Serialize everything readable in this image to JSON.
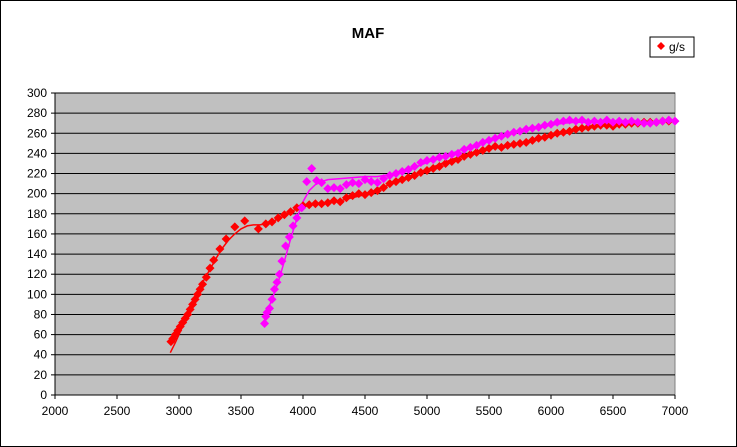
{
  "chart_data": {
    "type": "scatter",
    "title": "MAF",
    "xlabel": "",
    "ylabel": "",
    "xlim": [
      2000,
      7000
    ],
    "ylim": [
      0,
      300
    ],
    "x_ticks": [
      2000,
      2500,
      3000,
      3500,
      4000,
      4500,
      5000,
      5500,
      6000,
      6500,
      7000
    ],
    "y_ticks": [
      0,
      20,
      40,
      60,
      80,
      100,
      120,
      140,
      160,
      180,
      200,
      220,
      240,
      260,
      280,
      300
    ],
    "grid": "horizontal",
    "legend": "top-right",
    "plot_background": "#c0c0c0",
    "series": [
      {
        "name": "g/s",
        "color": "#ff0000",
        "marker": "diamond",
        "points": [
          [
            2935,
            53
          ],
          [
            2950,
            56
          ],
          [
            2970,
            60
          ],
          [
            2990,
            64
          ],
          [
            3010,
            68
          ],
          [
            3030,
            72
          ],
          [
            3050,
            76
          ],
          [
            3070,
            80
          ],
          [
            3090,
            85
          ],
          [
            3110,
            90
          ],
          [
            3130,
            95
          ],
          [
            3150,
            100
          ],
          [
            3170,
            105
          ],
          [
            3190,
            110
          ],
          [
            3220,
            117
          ],
          [
            3250,
            126
          ],
          [
            3280,
            134
          ],
          [
            3330,
            145
          ],
          [
            3380,
            155
          ],
          [
            3450,
            167
          ],
          [
            3530,
            173
          ],
          [
            3640,
            165
          ],
          [
            3700,
            170
          ],
          [
            3750,
            172
          ],
          [
            3800,
            176
          ],
          [
            3850,
            179
          ],
          [
            3900,
            182
          ],
          [
            3950,
            186
          ],
          [
            4000,
            188
          ],
          [
            4050,
            189
          ],
          [
            4100,
            190
          ],
          [
            4150,
            190
          ],
          [
            4200,
            191
          ],
          [
            4250,
            193
          ],
          [
            4300,
            192
          ],
          [
            4350,
            196
          ],
          [
            4400,
            198
          ],
          [
            4450,
            200
          ],
          [
            4500,
            199
          ],
          [
            4550,
            201
          ],
          [
            4600,
            203
          ],
          [
            4650,
            206
          ],
          [
            4700,
            210
          ],
          [
            4750,
            212
          ],
          [
            4800,
            214
          ],
          [
            4850,
            216
          ],
          [
            4900,
            218
          ],
          [
            4950,
            221
          ],
          [
            5000,
            223
          ],
          [
            5050,
            225
          ],
          [
            5100,
            227
          ],
          [
            5150,
            230
          ],
          [
            5200,
            232
          ],
          [
            5250,
            234
          ],
          [
            5300,
            237
          ],
          [
            5350,
            239
          ],
          [
            5400,
            241
          ],
          [
            5450,
            243
          ],
          [
            5500,
            245
          ],
          [
            5550,
            247
          ],
          [
            5600,
            246
          ],
          [
            5650,
            248
          ],
          [
            5700,
            249
          ],
          [
            5750,
            250
          ],
          [
            5800,
            251
          ],
          [
            5850,
            253
          ],
          [
            5900,
            255
          ],
          [
            5950,
            256
          ],
          [
            6000,
            258
          ],
          [
            6050,
            260
          ],
          [
            6100,
            261
          ],
          [
            6150,
            262
          ],
          [
            6200,
            264
          ],
          [
            6250,
            265
          ],
          [
            6300,
            266
          ],
          [
            6350,
            267
          ],
          [
            6400,
            268
          ],
          [
            6450,
            268
          ],
          [
            6500,
            267
          ],
          [
            6550,
            269
          ],
          [
            6600,
            269
          ],
          [
            6650,
            270
          ],
          [
            6700,
            270
          ],
          [
            6750,
            271
          ],
          [
            6800,
            271
          ],
          [
            6850,
            271
          ],
          [
            6900,
            272
          ],
          [
            6950,
            272
          ]
        ],
        "trendline": [
          [
            2930,
            42
          ],
          [
            2970,
            52
          ],
          [
            3000,
            60
          ],
          [
            3050,
            74
          ],
          [
            3100,
            88
          ],
          [
            3150,
            101
          ],
          [
            3200,
            114
          ],
          [
            3250,
            125
          ],
          [
            3300,
            136
          ],
          [
            3350,
            146
          ],
          [
            3400,
            154
          ],
          [
            3450,
            160
          ],
          [
            3500,
            165
          ],
          [
            3550,
            168
          ],
          [
            3600,
            169
          ],
          [
            3650,
            169
          ],
          [
            3700,
            170
          ],
          [
            3750,
            172
          ],
          [
            3800,
            175
          ],
          [
            3850,
            178
          ],
          [
            3900,
            182
          ],
          [
            3950,
            185
          ],
          [
            4000,
            188
          ],
          [
            4100,
            190
          ],
          [
            4200,
            191
          ],
          [
            4300,
            193
          ],
          [
            4400,
            196
          ],
          [
            4500,
            199
          ],
          [
            4600,
            204
          ],
          [
            4700,
            209
          ],
          [
            4800,
            214
          ],
          [
            4900,
            219
          ],
          [
            5000,
            224
          ],
          [
            5100,
            229
          ],
          [
            5200,
            234
          ],
          [
            5300,
            238
          ],
          [
            5400,
            242
          ],
          [
            5500,
            245
          ],
          [
            5600,
            247
          ],
          [
            5700,
            249
          ],
          [
            5800,
            251
          ],
          [
            5900,
            254
          ],
          [
            6000,
            257
          ],
          [
            6100,
            260
          ],
          [
            6200,
            263
          ],
          [
            6300,
            265
          ],
          [
            6400,
            267
          ],
          [
            6500,
            268
          ],
          [
            6600,
            269
          ],
          [
            6700,
            270
          ],
          [
            6800,
            271
          ],
          [
            6900,
            272
          ],
          [
            6960,
            273
          ]
        ]
      },
      {
        "name": "",
        "color": "#ff00ff",
        "marker": "diamond",
        "points": [
          [
            3690,
            71
          ],
          [
            3700,
            78
          ],
          [
            3710,
            82
          ],
          [
            3730,
            86
          ],
          [
            3750,
            95
          ],
          [
            3770,
            105
          ],
          [
            3790,
            112
          ],
          [
            3810,
            120
          ],
          [
            3830,
            133
          ],
          [
            3860,
            148
          ],
          [
            3890,
            157
          ],
          [
            3920,
            168
          ],
          [
            3950,
            176
          ],
          [
            3990,
            186
          ],
          [
            4030,
            212
          ],
          [
            4070,
            225
          ],
          [
            4110,
            213
          ],
          [
            4150,
            211
          ],
          [
            4200,
            205
          ],
          [
            4250,
            206
          ],
          [
            4300,
            205
          ],
          [
            4350,
            209
          ],
          [
            4400,
            211
          ],
          [
            4450,
            210
          ],
          [
            4500,
            214
          ],
          [
            4550,
            212
          ],
          [
            4600,
            211
          ],
          [
            4650,
            215
          ],
          [
            4700,
            218
          ],
          [
            4750,
            220
          ],
          [
            4800,
            222
          ],
          [
            4850,
            224
          ],
          [
            4900,
            227
          ],
          [
            4950,
            231
          ],
          [
            5000,
            233
          ],
          [
            5050,
            234
          ],
          [
            5100,
            236
          ],
          [
            5150,
            237
          ],
          [
            5200,
            239
          ],
          [
            5250,
            240
          ],
          [
            5300,
            244
          ],
          [
            5350,
            246
          ],
          [
            5400,
            248
          ],
          [
            5450,
            251
          ],
          [
            5500,
            253
          ],
          [
            5550,
            255
          ],
          [
            5600,
            257
          ],
          [
            5650,
            259
          ],
          [
            5700,
            261
          ],
          [
            5750,
            262
          ],
          [
            5800,
            264
          ],
          [
            5850,
            265
          ],
          [
            5900,
            266
          ],
          [
            5950,
            268
          ],
          [
            6000,
            269
          ],
          [
            6050,
            271
          ],
          [
            6100,
            272
          ],
          [
            6150,
            273
          ],
          [
            6200,
            272
          ],
          [
            6250,
            273
          ],
          [
            6300,
            271
          ],
          [
            6350,
            272
          ],
          [
            6400,
            271
          ],
          [
            6450,
            273
          ],
          [
            6500,
            271
          ],
          [
            6550,
            272
          ],
          [
            6600,
            271
          ],
          [
            6650,
            272
          ],
          [
            6700,
            271
          ],
          [
            6750,
            270
          ],
          [
            6800,
            270
          ],
          [
            6850,
            271
          ],
          [
            6900,
            272
          ],
          [
            6950,
            273
          ],
          [
            7000,
            272
          ]
        ],
        "trendline": [
          [
            3700,
            80
          ],
          [
            3750,
            95
          ],
          [
            3800,
            112
          ],
          [
            3850,
            133
          ],
          [
            3900,
            155
          ],
          [
            3950,
            175
          ],
          [
            4000,
            192
          ],
          [
            4050,
            203
          ],
          [
            4100,
            209
          ],
          [
            4150,
            212
          ],
          [
            4200,
            214
          ],
          [
            4300,
            215
          ],
          [
            4400,
            216
          ],
          [
            4500,
            217
          ],
          [
            4600,
            217
          ],
          [
            4700,
            219
          ],
          [
            4800,
            222
          ],
          [
            4900,
            226
          ],
          [
            5000,
            231
          ],
          [
            5100,
            236
          ],
          [
            5200,
            240
          ],
          [
            5300,
            245
          ],
          [
            5400,
            249
          ],
          [
            5500,
            253
          ],
          [
            5600,
            257
          ],
          [
            5700,
            260
          ],
          [
            5800,
            264
          ],
          [
            5900,
            266
          ],
          [
            6000,
            268
          ],
          [
            6100,
            270
          ],
          [
            6200,
            271
          ],
          [
            6300,
            271
          ],
          [
            6400,
            272
          ],
          [
            6500,
            272
          ],
          [
            6600,
            271
          ],
          [
            6700,
            271
          ],
          [
            6800,
            271
          ],
          [
            6900,
            272
          ],
          [
            6980,
            272
          ]
        ]
      }
    ]
  }
}
